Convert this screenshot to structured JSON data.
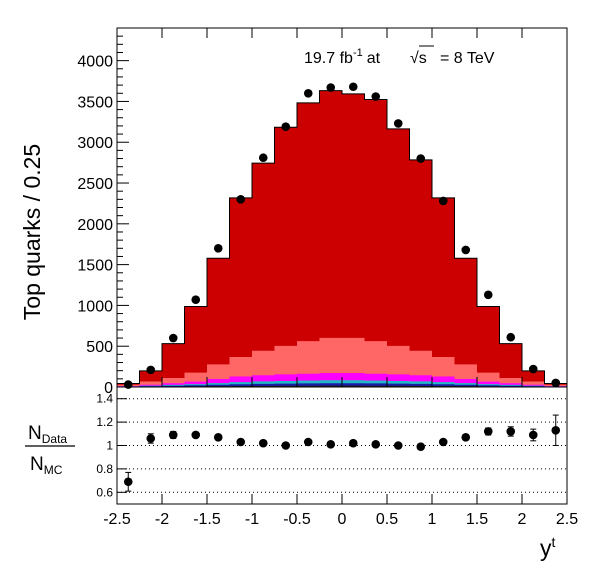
{
  "chart_data": [
    {
      "type": "stacked-histogram-with-data",
      "ylabel": "Top quarks / 0.25",
      "annotation": {
        "lumi": "19.7 fb",
        "lumi_exp": "-1",
        "at": "at",
        "sqrt": "√s",
        "energy": "=  8 TeV"
      },
      "xlim": [
        -2.5,
        2.5
      ],
      "ylim": [
        0,
        4400
      ],
      "yticks": [
        0,
        500,
        1000,
        1500,
        2000,
        2500,
        3000,
        3500,
        4000
      ],
      "bin_edges": [
        -2.5,
        -2.25,
        -2.0,
        -1.75,
        -1.5,
        -1.25,
        -1.0,
        -0.75,
        -0.5,
        -0.25,
        0.0,
        0.25,
        0.5,
        0.75,
        1.0,
        1.25,
        1.5,
        1.75,
        2.0,
        2.25,
        2.5
      ],
      "stack": [
        {
          "color": "#222222",
          "values": [
            2,
            4,
            6,
            8,
            10,
            12,
            14,
            15,
            16,
            17,
            17,
            16,
            15,
            14,
            12,
            10,
            8,
            6,
            4,
            2
          ]
        },
        {
          "color": "#1a1aa8",
          "values": [
            3,
            6,
            10,
            14,
            18,
            22,
            25,
            27,
            28,
            29,
            29,
            28,
            27,
            25,
            22,
            18,
            14,
            10,
            6,
            3
          ]
        },
        {
          "color": "#22b8c8",
          "values": [
            3,
            6,
            10,
            14,
            20,
            26,
            30,
            32,
            34,
            36,
            36,
            34,
            32,
            30,
            26,
            20,
            14,
            10,
            6,
            3
          ]
        },
        {
          "color": "#ff00ff",
          "values": [
            5,
            12,
            20,
            30,
            50,
            68,
            75,
            80,
            85,
            90,
            90,
            85,
            80,
            75,
            68,
            50,
            30,
            20,
            12,
            5
          ]
        },
        {
          "color": "#ff6666",
          "values": [
            15,
            40,
            65,
            110,
            180,
            240,
            300,
            350,
            400,
            430,
            430,
            400,
            350,
            300,
            240,
            180,
            110,
            65,
            40,
            15
          ]
        },
        {
          "color": "#cc0000",
          "values": [
            15,
            130,
            420,
            810,
            1300,
            1950,
            2300,
            2680,
            2920,
            3030,
            2990,
            2960,
            2660,
            2340,
            1950,
            1300,
            810,
            420,
            130,
            15
          ]
        }
      ],
      "data_points": {
        "x": [
          -2.375,
          -2.125,
          -1.875,
          -1.625,
          -1.375,
          -1.125,
          -0.875,
          -0.625,
          -0.375,
          -0.125,
          0.125,
          0.375,
          0.625,
          0.875,
          1.125,
          1.375,
          1.625,
          1.875,
          2.125,
          2.375
        ],
        "y": [
          30,
          210,
          600,
          1070,
          1700,
          2300,
          2810,
          3190,
          3600,
          3670,
          3680,
          3560,
          3230,
          2800,
          2280,
          1680,
          1130,
          610,
          220,
          50
        ]
      }
    },
    {
      "type": "scatter",
      "ylabel_main": "N",
      "ylabel_main_sub": "Data",
      "ylabel_den": "N",
      "ylabel_den_sub": "MC",
      "xlabel": "y",
      "xlabel_sup": "t",
      "xlim": [
        -2.5,
        2.5
      ],
      "ylim": [
        0.5,
        1.5
      ],
      "yticks": [
        0.6,
        0.8,
        1.0,
        1.2,
        1.4
      ],
      "ytick_labels": [
        "0.6",
        "0.8",
        "1",
        "1.2",
        "1.4"
      ],
      "xticks": [
        -2.5,
        -2,
        -1.5,
        -1,
        -0.5,
        0,
        0.5,
        1,
        1.5,
        2,
        2.5
      ],
      "xtick_labels": [
        "-2.5",
        "-2",
        "-1.5",
        "-1",
        "-0.5",
        "0",
        "0.5",
        "1",
        "1.5",
        "2",
        "2.5"
      ],
      "grid": "horizontal-dotted",
      "x": [
        -2.375,
        -2.125,
        -1.875,
        -1.625,
        -1.375,
        -1.125,
        -0.875,
        -0.625,
        -0.375,
        -0.125,
        0.125,
        0.375,
        0.625,
        0.875,
        1.125,
        1.375,
        1.625,
        1.875,
        2.125,
        2.375
      ],
      "y": [
        0.69,
        1.06,
        1.09,
        1.09,
        1.07,
        1.03,
        1.02,
        1.0,
        1.03,
        1.01,
        1.02,
        1.01,
        1.0,
        0.99,
        1.03,
        1.07,
        1.12,
        1.12,
        1.09,
        1.13
      ],
      "yerr": [
        0.08,
        0.04,
        0.03,
        0.02,
        0.02,
        0.01,
        0.01,
        0.01,
        0.01,
        0.01,
        0.01,
        0.01,
        0.01,
        0.01,
        0.01,
        0.02,
        0.03,
        0.04,
        0.05,
        0.13
      ]
    }
  ]
}
